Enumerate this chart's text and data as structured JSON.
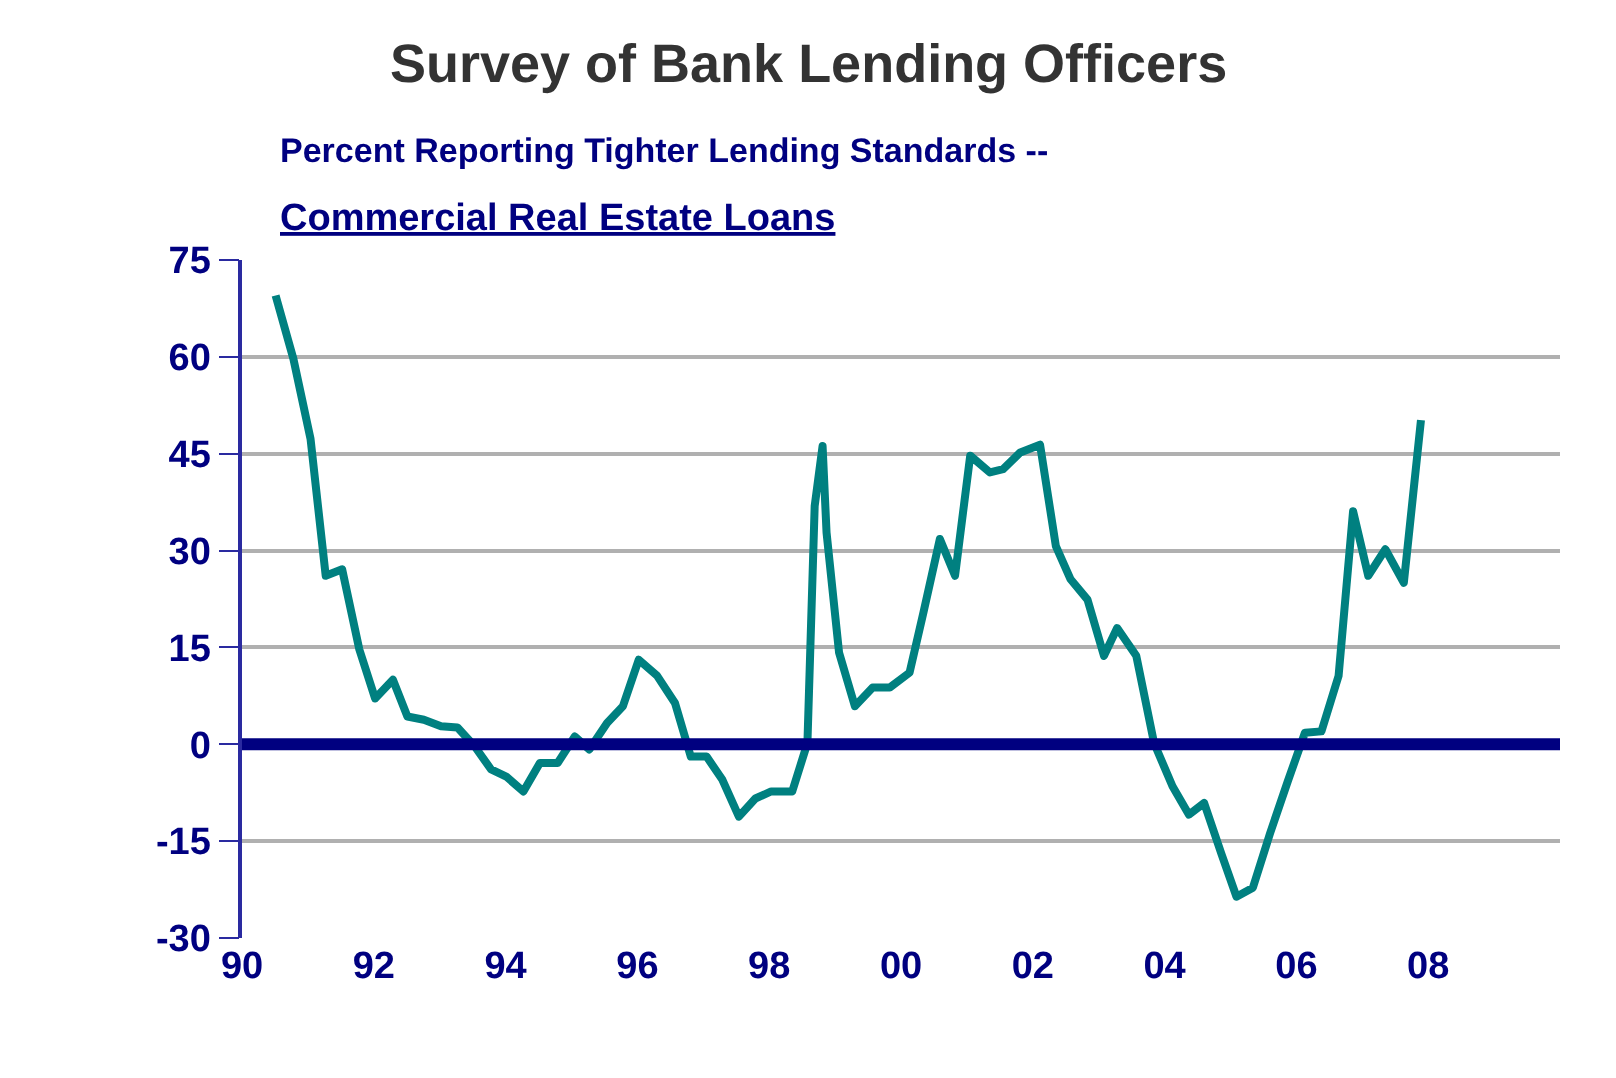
{
  "chart_data": {
    "type": "line",
    "title": "Survey of Bank Lending Officers",
    "subtitle": "Percent Reporting Tighter Lending Standards --\nCommercial Real Estate Loans",
    "x": [
      1990.51,
      1990.78,
      1991.04,
      1991.27,
      1991.52,
      1991.78,
      1992.02,
      1992.29,
      1992.51,
      1992.76,
      1993.02,
      1993.27,
      1993.53,
      1993.78,
      1994.01,
      1994.27,
      1994.52,
      1994.79,
      1995.05,
      1995.27,
      1995.54,
      1995.78,
      1996.02,
      1996.3,
      1996.57,
      1996.81,
      1997.05,
      1997.29,
      1997.54,
      1997.79,
      1998.03,
      1998.35,
      1998.58,
      1998.69,
      1998.81,
      1998.87,
      1999.06,
      1999.3,
      1999.57,
      1999.83,
      2000.13,
      2000.34,
      2000.59,
      2000.82,
      2001.05,
      2001.35,
      2001.55,
      2001.81,
      2002.11,
      2002.35,
      2002.57,
      2002.83,
      2003.08,
      2003.28,
      2003.57,
      2003.84,
      2004.12,
      2004.37,
      2004.6,
      2004.86,
      2005.09,
      2005.34,
      2005.6,
      2005.87,
      2006.13,
      2006.38,
      2006.64,
      2006.86,
      2007.09,
      2007.35,
      2007.63,
      2007.89
    ],
    "series": [
      {
        "color": "#008080",
        "values": [
          69.5,
          59.7,
          47.3,
          26.1,
          27.1,
          14.7,
          7.1,
          10.0,
          4.3,
          3.8,
          2.8,
          2.6,
          -0.3,
          -3.9,
          -5.0,
          -7.3,
          -2.9,
          -2.9,
          1.2,
          -0.8,
          3.3,
          5.9,
          13.1,
          10.6,
          6.4,
          -1.9,
          -1.9,
          -5.5,
          -11.2,
          -8.4,
          -7.3,
          -7.3,
          0.2,
          36.9,
          46.2,
          32.8,
          14.2,
          5.9,
          8.8,
          8.8,
          11.1,
          20.4,
          31.8,
          26.1,
          44.7,
          42.1,
          42.6,
          45.2,
          46.4,
          30.7,
          25.6,
          22.4,
          13.7,
          18.0,
          13.7,
          0.2,
          -6.5,
          -10.9,
          -9.1,
          -16.9,
          -23.6,
          -22.2,
          -13.8,
          -5.7,
          1.8,
          2.0,
          10.6,
          36.1,
          26.1,
          30.2,
          25.0,
          50.2
        ]
      }
    ],
    "xlim": [
      1990,
      2010
    ],
    "xticks": [
      {
        "value": 1990,
        "label": "90"
      },
      {
        "value": 1992,
        "label": "92"
      },
      {
        "value": 1994,
        "label": "94"
      },
      {
        "value": 1996,
        "label": "96"
      },
      {
        "value": 1998,
        "label": "98"
      },
      {
        "value": 2000,
        "label": "00"
      },
      {
        "value": 2002,
        "label": "02"
      },
      {
        "value": 2004,
        "label": "04"
      },
      {
        "value": 2006,
        "label": "06"
      },
      {
        "value": 2008,
        "label": "08"
      }
    ],
    "ylim": [
      -30,
      75
    ],
    "yticks": [
      -30,
      -15,
      0,
      15,
      30,
      45,
      60,
      75
    ],
    "grid": "y",
    "marker": "none",
    "line_style": "solid",
    "ref_lines": [
      {
        "axis": "y",
        "value": 0,
        "color": "#000080"
      }
    ]
  }
}
